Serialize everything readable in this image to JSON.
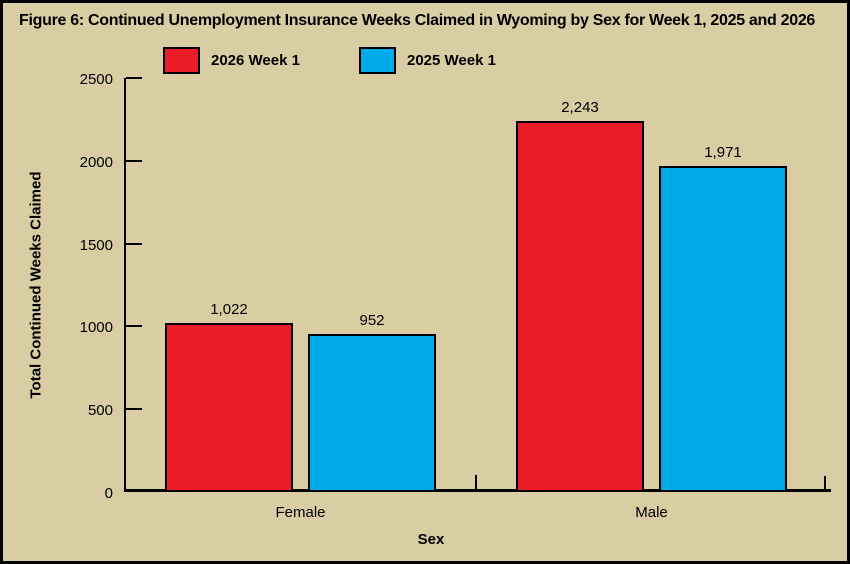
{
  "colors": {
    "background": "#d9cda4",
    "axis": "#000000",
    "text": "#000000"
  },
  "chart_data": {
    "type": "bar",
    "title": "Figure 6: Continued Unemployment Insurance Weeks Claimed in Wyoming by Sex for Week 1, 2025 and 2026",
    "xlabel": "Sex",
    "ylabel": "Total Continued Weeks Claimed",
    "categories": [
      "Female",
      "Male"
    ],
    "series": [
      {
        "name": "2026 Week 1",
        "color": "#ec1c26",
        "values": [
          1022,
          2243
        ],
        "data_labels": [
          "1,022",
          "2,243"
        ]
      },
      {
        "name": "2025 Week 1",
        "color": "#00aaea",
        "values": [
          952,
          1971
        ],
        "data_labels": [
          "952",
          "1,971"
        ]
      }
    ],
    "ylim": [
      0,
      2500
    ],
    "ytick_values": [
      0,
      500,
      1000,
      1500,
      2000,
      2500
    ],
    "ytick_labels": [
      "0",
      "500",
      "1000",
      "1500",
      "2000",
      "2500"
    ],
    "grid": false,
    "legend_position": "top",
    "plot_background": "#d9cda4"
  }
}
